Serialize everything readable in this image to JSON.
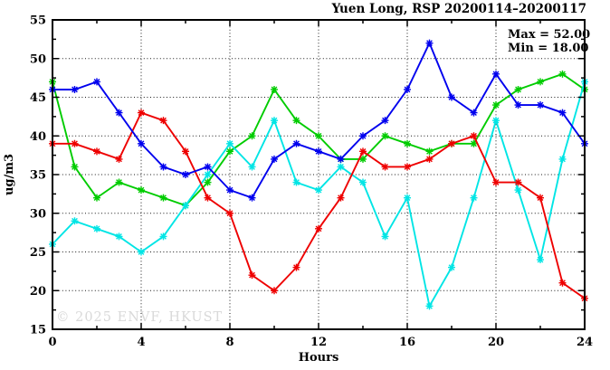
{
  "watermark": "© 2025 ENVF, HKUST",
  "chart_data": {
    "type": "line",
    "title": "Yuen Long, RSP 20200114–20200117",
    "xlabel": "Hours",
    "ylabel": "ug/m3",
    "xlim": [
      0,
      24
    ],
    "ylim": [
      15,
      55
    ],
    "grid": true,
    "legend_position": "none",
    "x_major_ticks": [
      0,
      4,
      8,
      12,
      16,
      20,
      24
    ],
    "x_tick_labels": [
      "0",
      "4",
      "8",
      "12",
      "16",
      "20",
      "24"
    ],
    "x_minor_ticks": [
      2,
      6,
      10,
      14,
      18,
      22
    ],
    "y_major_ticks": [
      15,
      20,
      25,
      30,
      35,
      40,
      45,
      50,
      55
    ],
    "y_tick_labels": [
      "15",
      "20",
      "25",
      "30",
      "35",
      "40",
      "45",
      "50",
      "55"
    ],
    "y_minor_ticks": [
      17.5,
      22.5,
      27.5,
      32.5,
      37.5,
      42.5,
      47.5,
      52.5
    ],
    "x_grid_at": [
      4,
      8,
      12,
      16,
      20
    ],
    "y_grid_at": [
      20,
      25,
      30,
      35,
      40,
      45,
      50
    ],
    "x": [
      0,
      1,
      2,
      3,
      4,
      5,
      6,
      7,
      8,
      9,
      10,
      11,
      12,
      13,
      14,
      15,
      16,
      17,
      18,
      19,
      20,
      21,
      22,
      23,
      24
    ],
    "series": [
      {
        "name": "green-line",
        "color": "#00cc00",
        "values": [
          47,
          36,
          32,
          34,
          33,
          32,
          31,
          34,
          38,
          40,
          46,
          42,
          40,
          37,
          37,
          40,
          39,
          38,
          39,
          39,
          44,
          46,
          47,
          48,
          46
        ]
      },
      {
        "name": "cyan-line",
        "color": "#00e5e5",
        "values": [
          26,
          29,
          28,
          27,
          25,
          27,
          31,
          35,
          39,
          36,
          42,
          34,
          33,
          36,
          34,
          27,
          32,
          18,
          23,
          32,
          42,
          33,
          24,
          37,
          47
        ]
      },
      {
        "name": "red-line",
        "color": "#ee0000",
        "values": [
          39,
          39,
          38,
          37,
          43,
          42,
          38,
          32,
          30,
          22,
          20,
          23,
          28,
          32,
          38,
          36,
          36,
          37,
          39,
          40,
          34,
          34,
          32,
          21,
          19
        ]
      },
      {
        "name": "blue-line",
        "color": "#0000ee",
        "values": [
          46,
          46,
          47,
          43,
          39,
          36,
          35,
          36,
          33,
          32,
          37,
          39,
          38,
          37,
          40,
          42,
          46,
          52,
          45,
          43,
          48,
          44,
          44,
          43,
          39
        ]
      }
    ],
    "annotations": {
      "max_label": "Max = 52.00",
      "min_label": "Min = 18.00"
    }
  }
}
